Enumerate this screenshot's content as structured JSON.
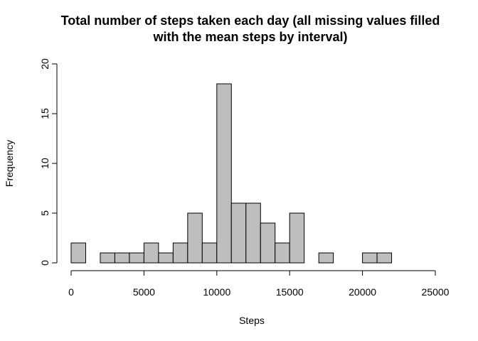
{
  "chart_data": {
    "type": "bar",
    "title_line1": "Total number of steps taken each day (all missing values filled",
    "title_line2": "with the mean steps by interval)",
    "xlabel": "Steps",
    "ylabel": "Frequency",
    "bin_width": 1000,
    "bin_starts": [
      0,
      1000,
      2000,
      3000,
      4000,
      5000,
      6000,
      7000,
      8000,
      9000,
      10000,
      11000,
      12000,
      13000,
      14000,
      15000,
      16000,
      17000,
      18000,
      19000,
      20000,
      21000
    ],
    "values": [
      2,
      0,
      1,
      1,
      1,
      2,
      1,
      2,
      5,
      2,
      18,
      6,
      6,
      4,
      2,
      5,
      0,
      1,
      0,
      0,
      1,
      1
    ],
    "xlim": [
      0,
      25000
    ],
    "ylim": [
      0,
      20
    ],
    "xticks": [
      "0",
      "5000",
      "10000",
      "15000",
      "20000",
      "25000"
    ],
    "yticks": [
      "0",
      "5",
      "10",
      "15",
      "20"
    ],
    "bar_color": "#bebebe",
    "grid": false,
    "legend": "none"
  }
}
